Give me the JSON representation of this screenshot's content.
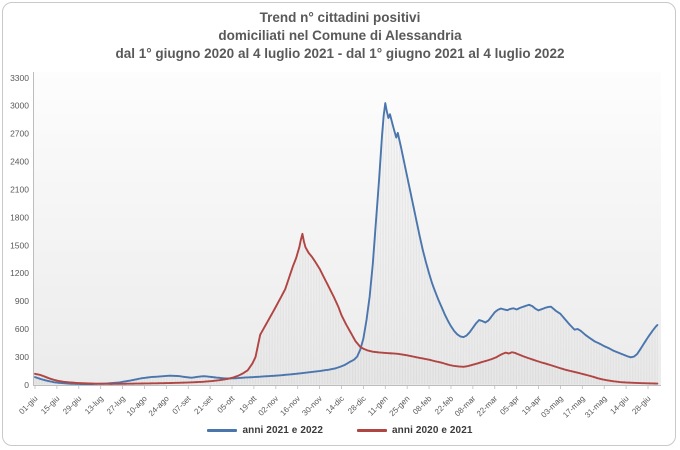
{
  "window": {
    "background": "#ffffff",
    "frame_border_color": "#c9c9c9"
  },
  "chart_data": {
    "type": "line",
    "title_lines": {
      "line1": "Trend n° cittadini positivi",
      "line2": "domiciliati nel Comune di Alessandria",
      "line3": "dal 1° giugno 2020 al 4 luglio 2021 - dal 1° giugno 2021 al 4 luglio 2022"
    },
    "title_color": "#595959",
    "axis_text_color": "#595959",
    "axis_line_color": "#bdbdbd",
    "drop_line_color": "#d9d9d9",
    "plot_bg_top": "#fdfdfd",
    "plot_bg_bottom": "#ebebeb",
    "grid": "off",
    "drop_lines": true,
    "legend_position": "bottom",
    "y_axis": {
      "min": 0,
      "max": 3300,
      "step": 300,
      "tick_labels": [
        "0",
        "300",
        "600",
        "900",
        "1200",
        "1500",
        "1800",
        "2100",
        "2400",
        "2700",
        "3000",
        "3300"
      ]
    },
    "x_axis": {
      "label_interval_days": 14,
      "total_days": 398,
      "tick_labels": [
        "01-giu",
        "15-giu",
        "29-giu",
        "13-lug",
        "27-lug",
        "10-ago",
        "24-ago",
        "07-set",
        "21-set",
        "05-ott",
        "19-ott",
        "02-nov",
        "16-nov",
        "30-nov",
        "14-dic",
        "28-dic",
        "11-gen",
        "25-gen",
        "08-feb",
        "22-feb",
        "08-mar",
        "22-mar",
        "05-apr",
        "19-apr",
        "03-mag",
        "17-mag",
        "31-mag",
        "14-giu",
        "28-giu"
      ]
    },
    "legend": [
      {
        "name": "anni 2021 e 2022",
        "color": "#4a76ad"
      },
      {
        "name": "anni 2020 e 2021",
        "color": "#b04543"
      }
    ],
    "series": [
      {
        "name": "anni 2021 e 2022",
        "color": "#4a76ad",
        "points": [
          [
            0,
            85
          ],
          [
            4,
            62
          ],
          [
            8,
            45
          ],
          [
            12,
            30
          ],
          [
            16,
            22
          ],
          [
            22,
            14
          ],
          [
            30,
            10
          ],
          [
            38,
            11
          ],
          [
            46,
            16
          ],
          [
            54,
            28
          ],
          [
            60,
            45
          ],
          [
            64,
            58
          ],
          [
            68,
            72
          ],
          [
            74,
            85
          ],
          [
            80,
            92
          ],
          [
            86,
            100
          ],
          [
            92,
            96
          ],
          [
            96,
            86
          ],
          [
            100,
            78
          ],
          [
            104,
            88
          ],
          [
            108,
            95
          ],
          [
            112,
            88
          ],
          [
            116,
            80
          ],
          [
            122,
            70
          ],
          [
            128,
            72
          ],
          [
            134,
            80
          ],
          [
            140,
            85
          ],
          [
            146,
            92
          ],
          [
            152,
            98
          ],
          [
            158,
            106
          ],
          [
            164,
            115
          ],
          [
            170,
            126
          ],
          [
            176,
            138
          ],
          [
            182,
            150
          ],
          [
            188,
            165
          ],
          [
            192,
            178
          ],
          [
            195,
            195
          ],
          [
            198,
            215
          ],
          [
            201,
            245
          ],
          [
            204,
            272
          ],
          [
            206,
            305
          ],
          [
            208,
            380
          ],
          [
            210,
            500
          ],
          [
            212,
            700
          ],
          [
            214,
            950
          ],
          [
            216,
            1300
          ],
          [
            218,
            1750
          ],
          [
            220,
            2200
          ],
          [
            221,
            2450
          ],
          [
            222,
            2700
          ],
          [
            223,
            2900
          ],
          [
            224,
            3030
          ],
          [
            225,
            2940
          ],
          [
            226,
            2870
          ],
          [
            227,
            2910
          ],
          [
            229,
            2780
          ],
          [
            231,
            2660
          ],
          [
            232,
            2710
          ],
          [
            234,
            2560
          ],
          [
            236,
            2400
          ],
          [
            238,
            2240
          ],
          [
            240,
            2080
          ],
          [
            242,
            1920
          ],
          [
            244,
            1760
          ],
          [
            246,
            1600
          ],
          [
            248,
            1450
          ],
          [
            250,
            1320
          ],
          [
            252,
            1200
          ],
          [
            254,
            1090
          ],
          [
            256,
            1000
          ],
          [
            258,
            915
          ],
          [
            260,
            838
          ],
          [
            262,
            760
          ],
          [
            264,
            692
          ],
          [
            266,
            632
          ],
          [
            268,
            582
          ],
          [
            270,
            545
          ],
          [
            272,
            522
          ],
          [
            274,
            515
          ],
          [
            276,
            532
          ],
          [
            278,
            568
          ],
          [
            280,
            615
          ],
          [
            282,
            662
          ],
          [
            284,
            698
          ],
          [
            286,
            688
          ],
          [
            288,
            672
          ],
          [
            290,
            694
          ],
          [
            292,
            738
          ],
          [
            294,
            782
          ],
          [
            296,
            808
          ],
          [
            298,
            822
          ],
          [
            300,
            812
          ],
          [
            302,
            804
          ],
          [
            304,
            818
          ],
          [
            306,
            824
          ],
          [
            308,
            812
          ],
          [
            310,
            828
          ],
          [
            312,
            840
          ],
          [
            314,
            852
          ],
          [
            316,
            862
          ],
          [
            318,
            848
          ],
          [
            320,
            820
          ],
          [
            322,
            802
          ],
          [
            324,
            815
          ],
          [
            326,
            828
          ],
          [
            328,
            838
          ],
          [
            330,
            842
          ],
          [
            333,
            798
          ],
          [
            336,
            765
          ],
          [
            339,
            705
          ],
          [
            342,
            648
          ],
          [
            345,
            595
          ],
          [
            347,
            602
          ],
          [
            349,
            582
          ],
          [
            352,
            538
          ],
          [
            355,
            502
          ],
          [
            358,
            468
          ],
          [
            361,
            445
          ],
          [
            364,
            418
          ],
          [
            367,
            395
          ],
          [
            370,
            368
          ],
          [
            373,
            348
          ],
          [
            376,
            328
          ],
          [
            379,
            308
          ],
          [
            381,
            298
          ],
          [
            383,
            305
          ],
          [
            385,
            332
          ],
          [
            387,
            382
          ],
          [
            389,
            435
          ],
          [
            391,
            488
          ],
          [
            393,
            538
          ],
          [
            395,
            585
          ],
          [
            397,
            628
          ],
          [
            398,
            645
          ]
        ]
      },
      {
        "name": "anni 2020 e 2021",
        "color": "#b04543",
        "points": [
          [
            0,
            120
          ],
          [
            3,
            110
          ],
          [
            6,
            92
          ],
          [
            9,
            72
          ],
          [
            12,
            56
          ],
          [
            15,
            44
          ],
          [
            18,
            35
          ],
          [
            22,
            28
          ],
          [
            26,
            23
          ],
          [
            32,
            18
          ],
          [
            40,
            14
          ],
          [
            48,
            12
          ],
          [
            56,
            13
          ],
          [
            64,
            15
          ],
          [
            72,
            17
          ],
          [
            80,
            19
          ],
          [
            88,
            22
          ],
          [
            96,
            26
          ],
          [
            102,
            30
          ],
          [
            108,
            35
          ],
          [
            113,
            42
          ],
          [
            118,
            52
          ],
          [
            123,
            65
          ],
          [
            127,
            82
          ],
          [
            130,
            100
          ],
          [
            133,
            125
          ],
          [
            136,
            158
          ],
          [
            139,
            230
          ],
          [
            141,
            300
          ],
          [
            144,
            540
          ],
          [
            147,
            630
          ],
          [
            150,
            720
          ],
          [
            153,
            810
          ],
          [
            157,
            935
          ],
          [
            160,
            1030
          ],
          [
            163,
            1180
          ],
          [
            165,
            1280
          ],
          [
            167,
            1365
          ],
          [
            169,
            1480
          ],
          [
            170,
            1560
          ],
          [
            171,
            1625
          ],
          [
            172,
            1540
          ],
          [
            173,
            1480
          ],
          [
            175,
            1420
          ],
          [
            177,
            1380
          ],
          [
            179,
            1330
          ],
          [
            182,
            1250
          ],
          [
            185,
            1150
          ],
          [
            188,
            1050
          ],
          [
            191,
            950
          ],
          [
            194,
            840
          ],
          [
            196,
            750
          ],
          [
            199,
            650
          ],
          [
            202,
            560
          ],
          [
            205,
            470
          ],
          [
            208,
            410
          ],
          [
            210,
            390
          ],
          [
            213,
            370
          ],
          [
            216,
            358
          ],
          [
            220,
            350
          ],
          [
            224,
            345
          ],
          [
            228,
            340
          ],
          [
            232,
            335
          ],
          [
            236,
            325
          ],
          [
            240,
            312
          ],
          [
            244,
            298
          ],
          [
            248,
            285
          ],
          [
            252,
            272
          ],
          [
            256,
            255
          ],
          [
            260,
            240
          ],
          [
            262,
            230
          ],
          [
            265,
            215
          ],
          [
            268,
            205
          ],
          [
            271,
            199
          ],
          [
            274,
            196
          ],
          [
            277,
            204
          ],
          [
            280,
            218
          ],
          [
            283,
            232
          ],
          [
            286,
            248
          ],
          [
            289,
            262
          ],
          [
            292,
            278
          ],
          [
            295,
            298
          ],
          [
            297,
            318
          ],
          [
            299,
            335
          ],
          [
            301,
            348
          ],
          [
            303,
            338
          ],
          [
            305,
            352
          ],
          [
            307,
            345
          ],
          [
            309,
            330
          ],
          [
            312,
            310
          ],
          [
            315,
            292
          ],
          [
            318,
            275
          ],
          [
            321,
            258
          ],
          [
            324,
            242
          ],
          [
            327,
            228
          ],
          [
            330,
            212
          ],
          [
            333,
            196
          ],
          [
            336,
            180
          ],
          [
            339,
            165
          ],
          [
            342,
            152
          ],
          [
            345,
            140
          ],
          [
            348,
            128
          ],
          [
            351,
            115
          ],
          [
            354,
            102
          ],
          [
            357,
            88
          ],
          [
            360,
            72
          ],
          [
            363,
            60
          ],
          [
            366,
            50
          ],
          [
            370,
            40
          ],
          [
            374,
            32
          ],
          [
            378,
            27
          ],
          [
            382,
            24
          ],
          [
            386,
            21
          ],
          [
            390,
            19
          ],
          [
            394,
            17
          ],
          [
            398,
            15
          ]
        ]
      }
    ]
  }
}
